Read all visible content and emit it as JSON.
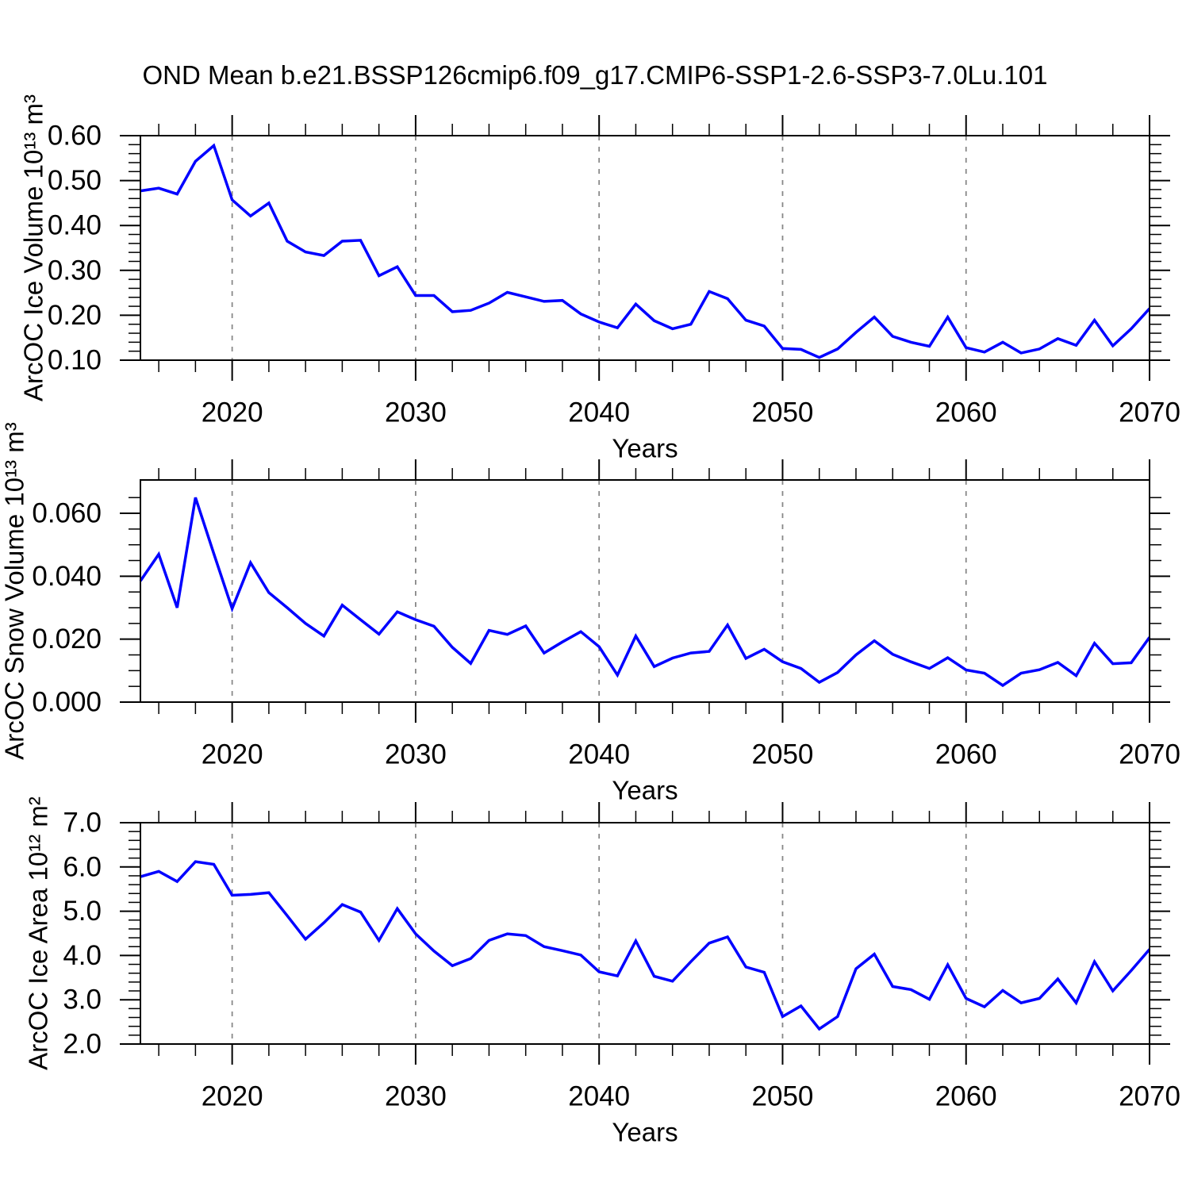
{
  "title": "OND Mean b.e21.BSSP126cmip6.f09_g17.CMIP6-SSP1-2.6-SSP3-7.0Lu.101",
  "colors": {
    "line": "#0000ff",
    "grid": "#888888",
    "axis": "#000000"
  },
  "chart_data": {
    "type": "line",
    "title": "OND Mean b.e21.BSSP126cmip6.f09_g17.CMIP6-SSP1-2.6-SSP3-7.0Lu.101",
    "xlabel": "Years",
    "xlim": [
      2015,
      2070
    ],
    "grid": "vertical-dashed",
    "legend_position": "none",
    "gridline_years": [
      2020,
      2030,
      2040,
      2050,
      2060
    ],
    "x_ticks": {
      "values": [
        2020,
        2030,
        2040,
        2050,
        2060,
        2070
      ],
      "labels": [
        "2020",
        "2030",
        "2040",
        "2050",
        "2060",
        "2070"
      ]
    },
    "x_minor_step": 2,
    "x": [
      2015,
      2016,
      2017,
      2018,
      2019,
      2020,
      2021,
      2022,
      2023,
      2024,
      2025,
      2026,
      2027,
      2028,
      2029,
      2030,
      2031,
      2032,
      2033,
      2034,
      2035,
      2036,
      2037,
      2038,
      2039,
      2040,
      2041,
      2042,
      2043,
      2044,
      2045,
      2046,
      2047,
      2048,
      2049,
      2050,
      2051,
      2052,
      2053,
      2054,
      2055,
      2056,
      2057,
      2058,
      2059,
      2060,
      2061,
      2062,
      2063,
      2064,
      2065,
      2066,
      2067,
      2068,
      2069,
      2070
    ],
    "panels": [
      {
        "name": "ice-volume",
        "ylabel": "ArcOC Ice Volume 10¹³ m³",
        "xlabel": "Years",
        "ylim": [
          0.1,
          0.6
        ],
        "y_ticks": {
          "values": [
            0.1,
            0.2,
            0.3,
            0.4,
            0.5,
            0.6
          ],
          "labels": [
            "0.10",
            "0.20",
            "0.30",
            "0.40",
            "0.50",
            "0.60"
          ]
        },
        "y_minor_step": 0.02,
        "values": [
          0.477,
          0.483,
          0.47,
          0.543,
          0.578,
          0.457,
          0.421,
          0.45,
          0.365,
          0.341,
          0.333,
          0.365,
          0.367,
          0.288,
          0.308,
          0.244,
          0.244,
          0.208,
          0.211,
          0.227,
          0.251,
          0.241,
          0.231,
          0.233,
          0.203,
          0.185,
          0.172,
          0.225,
          0.188,
          0.17,
          0.18,
          0.253,
          0.237,
          0.189,
          0.176,
          0.126,
          0.124,
          0.106,
          0.125,
          0.162,
          0.196,
          0.153,
          0.14,
          0.131,
          0.196,
          0.128,
          0.118,
          0.14,
          0.116,
          0.125,
          0.148,
          0.133,
          0.189,
          0.132,
          0.17,
          0.215
        ]
      },
      {
        "name": "snow-volume",
        "ylabel": "ArcOC Snow Volume 10¹³ m³",
        "xlabel": "Years",
        "ylim": [
          0.0,
          0.0706
        ],
        "y_ticks": {
          "values": [
            0.0,
            0.02,
            0.04,
            0.06
          ],
          "labels": [
            "0.000",
            "0.020",
            "0.040",
            "0.060"
          ]
        },
        "y_minor_step": 0.005,
        "values": [
          0.0385,
          0.047,
          0.03,
          0.065,
          0.0472,
          0.0297,
          0.0443,
          0.0348,
          0.03,
          0.025,
          0.021,
          0.0308,
          0.0262,
          0.0216,
          0.0287,
          0.0262,
          0.0241,
          0.0174,
          0.0123,
          0.0228,
          0.0215,
          0.0242,
          0.0156,
          0.0191,
          0.0224,
          0.0176,
          0.0086,
          0.021,
          0.0113,
          0.014,
          0.0156,
          0.0161,
          0.0245,
          0.0139,
          0.0168,
          0.0128,
          0.0107,
          0.0063,
          0.0094,
          0.015,
          0.0195,
          0.0152,
          0.0128,
          0.0107,
          0.0141,
          0.0102,
          0.0092,
          0.0053,
          0.0092,
          0.0103,
          0.0126,
          0.0084,
          0.0187,
          0.0122,
          0.0125,
          0.0206
        ]
      },
      {
        "name": "ice-area",
        "ylabel": "ArcOC Ice Area 10¹² m²",
        "xlabel": "Years",
        "ylim": [
          2.0,
          7.0
        ],
        "y_ticks": {
          "values": [
            2.0,
            3.0,
            4.0,
            5.0,
            6.0,
            7.0
          ],
          "labels": [
            "2.0",
            "3.0",
            "4.0",
            "5.0",
            "6.0",
            "7.0"
          ]
        },
        "y_minor_step": 0.2,
        "values": [
          5.78,
          5.9,
          5.67,
          6.12,
          6.06,
          5.36,
          5.38,
          5.42,
          4.9,
          4.37,
          4.74,
          5.15,
          4.98,
          4.34,
          5.06,
          4.49,
          4.1,
          3.77,
          3.93,
          4.34,
          4.49,
          4.45,
          4.2,
          4.11,
          4.01,
          3.63,
          3.54,
          4.33,
          3.53,
          3.42,
          3.86,
          4.28,
          4.42,
          3.74,
          3.62,
          2.62,
          2.86,
          2.34,
          2.62,
          3.7,
          4.03,
          3.3,
          3.23,
          3.01,
          3.79,
          3.03,
          2.84,
          3.21,
          2.93,
          3.03,
          3.47,
          2.93,
          3.86,
          3.2,
          3.66,
          4.14
        ]
      }
    ]
  }
}
